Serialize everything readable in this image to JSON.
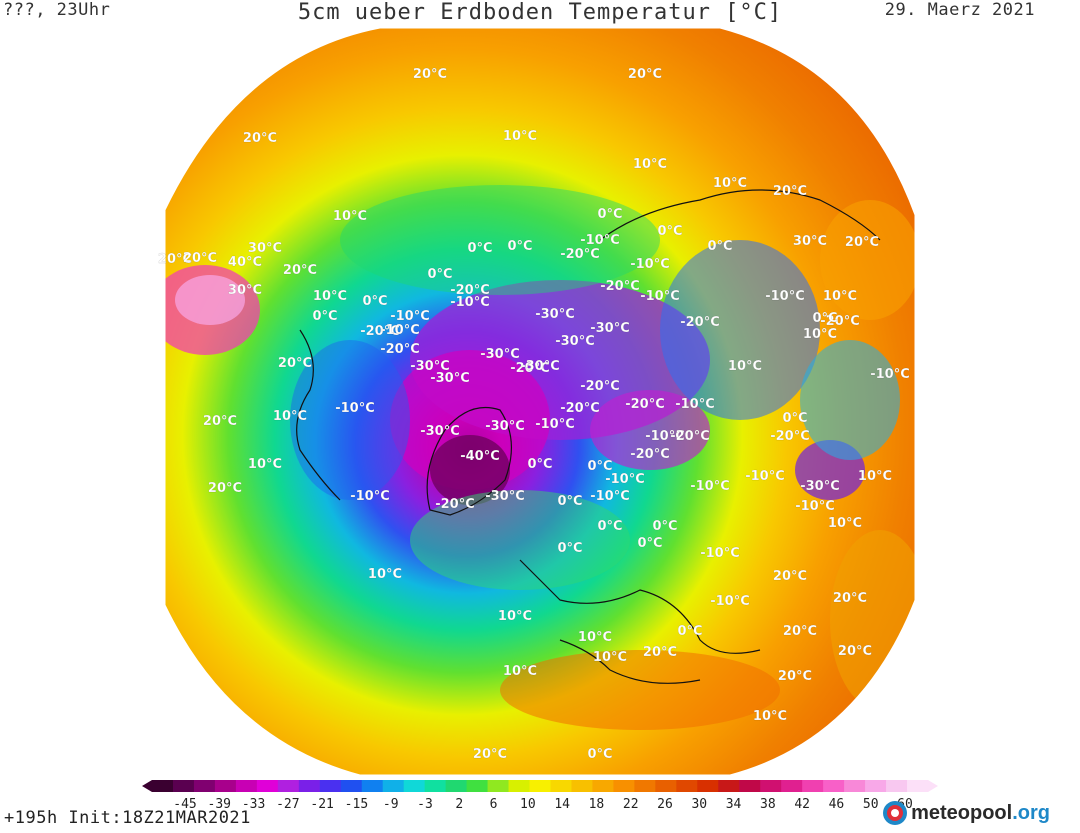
{
  "header": {
    "left": "???, 23Uhr",
    "title": "5cm ueber Erdboden Temperatur [°C]",
    "date": "29. Maerz 2021"
  },
  "footer": {
    "run": "+195h Init:18Z21MAR2021",
    "brand_main": "meteopool",
    "brand_tld": ".org"
  },
  "legend": {
    "ticks": [
      "-45",
      "-39",
      "-33",
      "-27",
      "-21",
      "-15",
      "-9",
      "-3",
      "2",
      "6",
      "10",
      "14",
      "18",
      "22",
      "26",
      "30",
      "34",
      "38",
      "42",
      "46",
      "50",
      "60"
    ],
    "colors": [
      "#3a0030",
      "#5a0050",
      "#800070",
      "#a8008c",
      "#c800b4",
      "#e000d8",
      "#b020e0",
      "#7a20e8",
      "#4a30f0",
      "#2050f0",
      "#1080f0",
      "#10b0e8",
      "#10d8d8",
      "#10e0a0",
      "#20d870",
      "#40e040",
      "#90e820",
      "#d8f000",
      "#f8f000",
      "#f8d800",
      "#f8c000",
      "#f8a800",
      "#f89000",
      "#f07800",
      "#e86000",
      "#e04800",
      "#d83000",
      "#c81818",
      "#c00848",
      "#d01070",
      "#e02090",
      "#f040b0",
      "#f860c8",
      "#f888d8",
      "#f8a8e8",
      "#f8c8f0",
      "#fce0f8"
    ],
    "scale_min": -48,
    "scale_max": 62
  },
  "map": {
    "labels": [
      "20°C",
      "20°C",
      "20°C",
      "10°C",
      "10°C",
      "10°C",
      "20°C",
      "20°C",
      "20°C",
      "30°C",
      "40°C",
      "30°C",
      "20°C",
      "10°C",
      "0°C",
      "0°C",
      "0°C",
      "0°C",
      "0°C",
      "0°C",
      "-10°C",
      "-20°C",
      "10°C",
      "0°C",
      "-10°C",
      "-20°C",
      "-10°C",
      "-10°C",
      "-20°C",
      "-20°C",
      "-30°C",
      "-30°C",
      "-30°C",
      "-30°C",
      "-30°C",
      "-30°C",
      "-20°C",
      "-20°C",
      "-10°C",
      "-10°C",
      "-20°C",
      "-30°C",
      "-40°C",
      "-30°C",
      "-30°C",
      "-20°C",
      "-20°C",
      "-10°C",
      "-20°C",
      "-10°C",
      "0°C",
      "0°C",
      "0°C",
      "-10°C",
      "-10°C",
      "-10°C",
      "-20°C",
      "-10°C",
      "-20°C",
      "-30°C",
      "-20°C",
      "-10°C",
      "-10°C",
      "0°C",
      "0°C",
      "0°C",
      "0°C",
      "-10°C",
      "-10°C",
      "0°C",
      "10°C",
      "10°C",
      "-10°C",
      "-20°C",
      "-30°C",
      "-10°C",
      "10°C",
      "20°C",
      "20°C",
      "20°C",
      "20°C",
      "10°C",
      "10°C",
      "10°C",
      "10°C",
      "10°C",
      "20°C",
      "20°C",
      "20°C",
      "20°C",
      "20°C",
      "20°C",
      "10°C",
      "20°C",
      "0°C",
      "0°C",
      "-10°C",
      "10°C",
      "0°C",
      "-20°C",
      "30°C",
      "10°C",
      "10°C",
      "-10°C",
      "0°C",
      "10°C"
    ]
  }
}
